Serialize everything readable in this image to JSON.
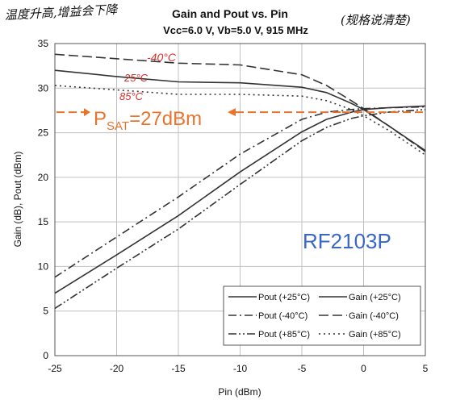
{
  "chart_data": {
    "type": "line",
    "title": "Gain and Pout vs. Pin",
    "subtitle": "Vcc=6.0 V, Vb=5.0 V, 915 MHz",
    "xlabel": "Pin (dBm)",
    "ylabel": "Gain (dB), Pout (dBm)",
    "xlim": [
      -25,
      5
    ],
    "ylim": [
      0,
      35
    ],
    "xticks": [
      -25,
      -20,
      -15,
      -10,
      -5,
      0,
      5
    ],
    "yticks": [
      0,
      5,
      10,
      15,
      20,
      25,
      30,
      35
    ],
    "grid": true,
    "legend_position": "bottom-right",
    "part_label": "RF2103P",
    "colors": {
      "series": "#333333",
      "grid": "#c0c0c0",
      "annotation": "#e8742c",
      "ink": "#d9302c",
      "part_label": "#3a66c8",
      "handwriting": "#111111"
    },
    "series": [
      {
        "name": "Pout (+25°C)",
        "style": "solid",
        "x": [
          -25,
          -20,
          -15,
          -10,
          -5,
          -3,
          -1,
          0,
          2,
          5
        ],
        "y": [
          7.0,
          11.3,
          15.7,
          20.6,
          25.1,
          26.5,
          27.3,
          27.6,
          27.8,
          28.0
        ]
      },
      {
        "name": "Pout (-40°C)",
        "style": "dashdot",
        "x": [
          -25,
          -20,
          -15,
          -10,
          -5,
          -3,
          -1,
          0,
          2,
          5
        ],
        "y": [
          8.8,
          13.3,
          17.8,
          22.6,
          26.5,
          27.3,
          27.6,
          27.7,
          27.8,
          27.9
        ]
      },
      {
        "name": "Pout (+85°C)",
        "style": "dashdotdot",
        "x": [
          -25,
          -20,
          -15,
          -10,
          -5,
          -3,
          -1,
          0,
          2,
          5
        ],
        "y": [
          5.3,
          9.8,
          14.2,
          19.2,
          24.1,
          25.6,
          26.6,
          26.9,
          27.3,
          27.6
        ]
      },
      {
        "name": "Gain (+25°C)",
        "style": "solid",
        "x": [
          -25,
          -20,
          -15,
          -10,
          -5,
          -3,
          -1,
          0,
          2,
          5
        ],
        "y": [
          32.0,
          31.3,
          30.7,
          30.6,
          30.1,
          29.5,
          28.3,
          27.6,
          25.8,
          23.0
        ]
      },
      {
        "name": "Gain (-40°C)",
        "style": "dashed",
        "x": [
          -25,
          -20,
          -15,
          -10,
          -5,
          -3,
          -1,
          0,
          2,
          5
        ],
        "y": [
          33.8,
          33.3,
          32.8,
          32.6,
          31.5,
          30.3,
          28.6,
          27.7,
          25.8,
          22.9
        ]
      },
      {
        "name": "Gain (+85°C)",
        "style": "dotted",
        "x": [
          -25,
          -20,
          -15,
          -10,
          -5,
          -3,
          -1,
          0,
          2,
          5
        ],
        "y": [
          30.3,
          29.8,
          29.3,
          29.3,
          29.1,
          28.6,
          27.6,
          26.9,
          25.3,
          22.5
        ]
      }
    ],
    "annotations": {
      "psat_prefix": "P",
      "psat_sub": "SAT",
      "psat_value": "=27dBm",
      "psat_level": 27.3,
      "handwritten_left": "温度升高,增益会下降",
      "handwritten_right": "(规格说清楚)",
      "ink_minus40": "-40°C",
      "ink_25": "25°C",
      "ink_85": "85°C"
    }
  }
}
